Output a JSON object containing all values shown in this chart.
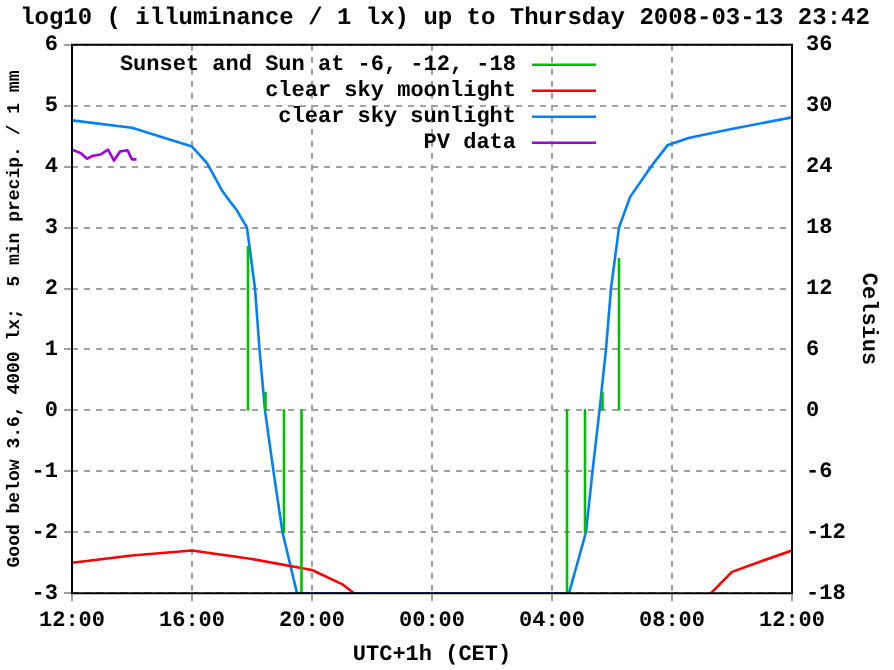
{
  "chart_data": {
    "type": "line",
    "title": "log10 ( illuminance / 1 lx) up to Thursday 2008-03-13 23:42",
    "xlabel": "UTC+1h (CET)",
    "ylabel": "Good below 3.6, 4000 lx;  5 min precip. / 1 mm",
    "y2label": "Celsius",
    "xlim": [
      "2008-03-13T12:00",
      "2008-03-14T12:00"
    ],
    "xticks": [
      {
        "value": "2008-03-13T12:00",
        "label": "12:00"
      },
      {
        "value": "2008-03-13T16:00",
        "label": "16:00"
      },
      {
        "value": "2008-03-13T20:00",
        "label": "20:00"
      },
      {
        "value": "2008-03-14T00:00",
        "label": "00:00"
      },
      {
        "value": "2008-03-14T04:00",
        "label": "04:00"
      },
      {
        "value": "2008-03-14T08:00",
        "label": "08:00"
      },
      {
        "value": "2008-03-14T12:00",
        "label": "12:00"
      }
    ],
    "ylim": [
      -3,
      6
    ],
    "yticks": [
      -3,
      -2,
      -1,
      0,
      1,
      2,
      3,
      4,
      5,
      6
    ],
    "y2lim": [
      -18,
      36
    ],
    "y2ticks": [
      -18,
      -12,
      -6,
      0,
      6,
      12,
      18,
      24,
      30,
      36
    ],
    "grid": true,
    "legend": "top left",
    "line_style": "solid",
    "marker": "none",
    "series": [
      {
        "name": "Sunset and Sun at -6, -12, -18",
        "color": "#00c000",
        "x": [
          "2008-03-13T17:52",
          "2008-03-13T17:52",
          null,
          "2008-03-13T18:27",
          "2008-03-13T18:27",
          null,
          "2008-03-13T19:04",
          "2008-03-13T19:04",
          null,
          "2008-03-13T19:39",
          "2008-03-13T19:39",
          null,
          "2008-03-14T04:30",
          "2008-03-14T04:30",
          null,
          "2008-03-14T05:06",
          "2008-03-14T05:06",
          null,
          "2008-03-14T05:41",
          "2008-03-14T05:41",
          null,
          "2008-03-14T06:14",
          "2008-03-14T06:14"
        ],
        "values": [
          0,
          2.7,
          null,
          0,
          0.3,
          null,
          0,
          -2,
          null,
          0,
          -3,
          null,
          0,
          -3,
          null,
          0,
          -2,
          null,
          0,
          0.3,
          null,
          0,
          2.5
        ]
      },
      {
        "name": "clear sky moonlight",
        "color": "#ff0000",
        "x": [
          "2008-03-13T12:00",
          "2008-03-13T14:00",
          "2008-03-13T16:00",
          "2008-03-13T18:00",
          "2008-03-13T20:00",
          "2008-03-13T21:00",
          "2008-03-13T21:24",
          null,
          "2008-03-14T09:18",
          "2008-03-14T10:00",
          "2008-03-14T11:00",
          "2008-03-14T12:00"
        ],
        "values": [
          -2.5,
          -2.38,
          -2.3,
          -2.44,
          -2.62,
          -2.85,
          -3,
          null,
          -3,
          -2.65,
          -2.47,
          -2.3
        ]
      },
      {
        "name": "clear sky sunlight",
        "color": "#0080ff",
        "x": [
          "2008-03-13T12:00",
          "2008-03-13T14:00",
          "2008-03-13T16:00",
          "2008-03-13T16:30",
          "2008-03-13T17:00",
          "2008-03-13T17:15",
          "2008-03-13T17:30",
          "2008-03-13T17:50",
          "2008-03-13T18:06",
          "2008-03-13T18:15",
          "2008-03-13T18:26",
          "2008-03-13T18:43",
          "2008-03-13T19:01",
          "2008-03-13T19:30",
          "2008-03-14T04:34",
          "2008-03-14T05:08",
          "2008-03-14T05:21",
          "2008-03-14T05:35",
          "2008-03-14T05:48",
          "2008-03-14T05:58",
          "2008-03-14T06:14",
          "2008-03-14T06:36",
          "2008-03-14T07:18",
          "2008-03-14T07:51",
          "2008-03-14T08:33",
          "2008-03-14T09:54",
          "2008-03-14T12:00"
        ],
        "values": [
          4.76,
          4.64,
          4.33,
          4.06,
          3.61,
          3.44,
          3.28,
          3,
          2,
          1,
          0,
          -1,
          -2,
          -3,
          -3,
          -2,
          -1,
          0,
          1,
          2,
          3,
          3.5,
          4,
          4.35,
          4.47,
          4.61,
          4.81
        ]
      },
      {
        "name": "PV data",
        "color": "#a000e0",
        "x": [
          "2008-03-13T12:00",
          "2008-03-13T12:18",
          "2008-03-13T12:30",
          "2008-03-13T12:42",
          "2008-03-13T12:57",
          "2008-03-13T13:12",
          "2008-03-13T13:24",
          "2008-03-13T13:36",
          "2008-03-13T13:51",
          "2008-03-13T14:00",
          "2008-03-13T14:09"
        ],
        "values": [
          4.28,
          4.22,
          4.13,
          4.18,
          4.2,
          4.28,
          4.1,
          4.25,
          4.27,
          4.12,
          4.12
        ]
      }
    ]
  }
}
